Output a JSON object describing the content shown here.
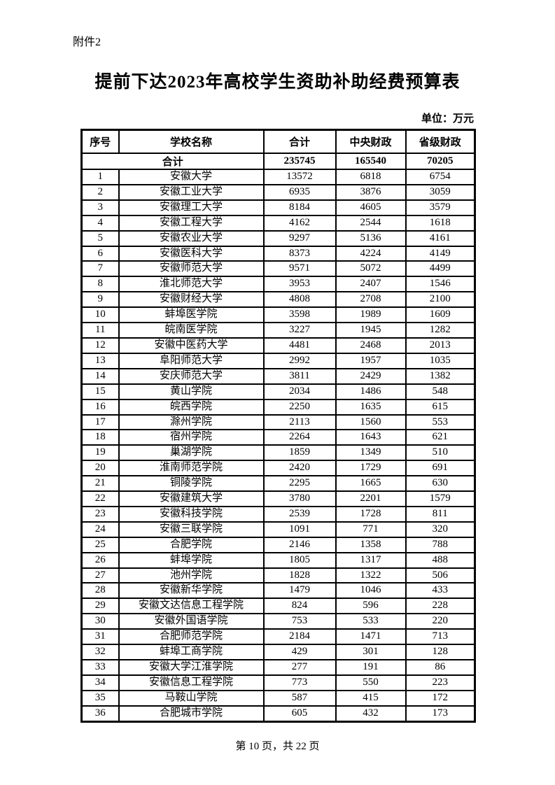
{
  "page": {
    "attachment_label": "附件2",
    "title": "提前下达2023年高校学生资助补助经费预算表",
    "unit_label": "单位：万元",
    "footer": "第 10 页，共 22 页"
  },
  "table": {
    "headers": [
      "序号",
      "学校名称",
      "合计",
      "中央财政",
      "省级财政"
    ],
    "total_row": {
      "label": "合计",
      "total": "235745",
      "central": "165540",
      "provincial": "70205"
    },
    "rows": [
      {
        "no": "1",
        "school": "安徽大学",
        "total": "13572",
        "central": "6818",
        "provincial": "6754"
      },
      {
        "no": "2",
        "school": "安徽工业大学",
        "total": "6935",
        "central": "3876",
        "provincial": "3059"
      },
      {
        "no": "3",
        "school": "安徽理工大学",
        "total": "8184",
        "central": "4605",
        "provincial": "3579"
      },
      {
        "no": "4",
        "school": "安徽工程大学",
        "total": "4162",
        "central": "2544",
        "provincial": "1618"
      },
      {
        "no": "5",
        "school": "安徽农业大学",
        "total": "9297",
        "central": "5136",
        "provincial": "4161"
      },
      {
        "no": "6",
        "school": "安徽医科大学",
        "total": "8373",
        "central": "4224",
        "provincial": "4149"
      },
      {
        "no": "7",
        "school": "安徽师范大学",
        "total": "9571",
        "central": "5072",
        "provincial": "4499"
      },
      {
        "no": "8",
        "school": "淮北师范大学",
        "total": "3953",
        "central": "2407",
        "provincial": "1546"
      },
      {
        "no": "9",
        "school": "安徽财经大学",
        "total": "4808",
        "central": "2708",
        "provincial": "2100"
      },
      {
        "no": "10",
        "school": "蚌埠医学院",
        "total": "3598",
        "central": "1989",
        "provincial": "1609"
      },
      {
        "no": "11",
        "school": "皖南医学院",
        "total": "3227",
        "central": "1945",
        "provincial": "1282"
      },
      {
        "no": "12",
        "school": "安徽中医药大学",
        "total": "4481",
        "central": "2468",
        "provincial": "2013"
      },
      {
        "no": "13",
        "school": "阜阳师范大学",
        "total": "2992",
        "central": "1957",
        "provincial": "1035"
      },
      {
        "no": "14",
        "school": "安庆师范大学",
        "total": "3811",
        "central": "2429",
        "provincial": "1382"
      },
      {
        "no": "15",
        "school": "黄山学院",
        "total": "2034",
        "central": "1486",
        "provincial": "548"
      },
      {
        "no": "16",
        "school": "皖西学院",
        "total": "2250",
        "central": "1635",
        "provincial": "615"
      },
      {
        "no": "17",
        "school": "滁州学院",
        "total": "2113",
        "central": "1560",
        "provincial": "553"
      },
      {
        "no": "18",
        "school": "宿州学院",
        "total": "2264",
        "central": "1643",
        "provincial": "621"
      },
      {
        "no": "19",
        "school": "巢湖学院",
        "total": "1859",
        "central": "1349",
        "provincial": "510"
      },
      {
        "no": "20",
        "school": "淮南师范学院",
        "total": "2420",
        "central": "1729",
        "provincial": "691"
      },
      {
        "no": "21",
        "school": "铜陵学院",
        "total": "2295",
        "central": "1665",
        "provincial": "630"
      },
      {
        "no": "22",
        "school": "安徽建筑大学",
        "total": "3780",
        "central": "2201",
        "provincial": "1579"
      },
      {
        "no": "23",
        "school": "安徽科技学院",
        "total": "2539",
        "central": "1728",
        "provincial": "811"
      },
      {
        "no": "24",
        "school": "安徽三联学院",
        "total": "1091",
        "central": "771",
        "provincial": "320"
      },
      {
        "no": "25",
        "school": "合肥学院",
        "total": "2146",
        "central": "1358",
        "provincial": "788"
      },
      {
        "no": "26",
        "school": "蚌埠学院",
        "total": "1805",
        "central": "1317",
        "provincial": "488"
      },
      {
        "no": "27",
        "school": "池州学院",
        "total": "1828",
        "central": "1322",
        "provincial": "506"
      },
      {
        "no": "28",
        "school": "安徽新华学院",
        "total": "1479",
        "central": "1046",
        "provincial": "433"
      },
      {
        "no": "29",
        "school": "安徽文达信息工程学院",
        "total": "824",
        "central": "596",
        "provincial": "228"
      },
      {
        "no": "30",
        "school": "安徽外国语学院",
        "total": "753",
        "central": "533",
        "provincial": "220"
      },
      {
        "no": "31",
        "school": "合肥师范学院",
        "total": "2184",
        "central": "1471",
        "provincial": "713"
      },
      {
        "no": "32",
        "school": "蚌埠工商学院",
        "total": "429",
        "central": "301",
        "provincial": "128"
      },
      {
        "no": "33",
        "school": "安徽大学江淮学院",
        "total": "277",
        "central": "191",
        "provincial": "86"
      },
      {
        "no": "34",
        "school": "安徽信息工程学院",
        "total": "773",
        "central": "550",
        "provincial": "223"
      },
      {
        "no": "35",
        "school": "马鞍山学院",
        "total": "587",
        "central": "415",
        "provincial": "172"
      },
      {
        "no": "36",
        "school": "合肥城市学院",
        "total": "605",
        "central": "432",
        "provincial": "173"
      }
    ]
  }
}
